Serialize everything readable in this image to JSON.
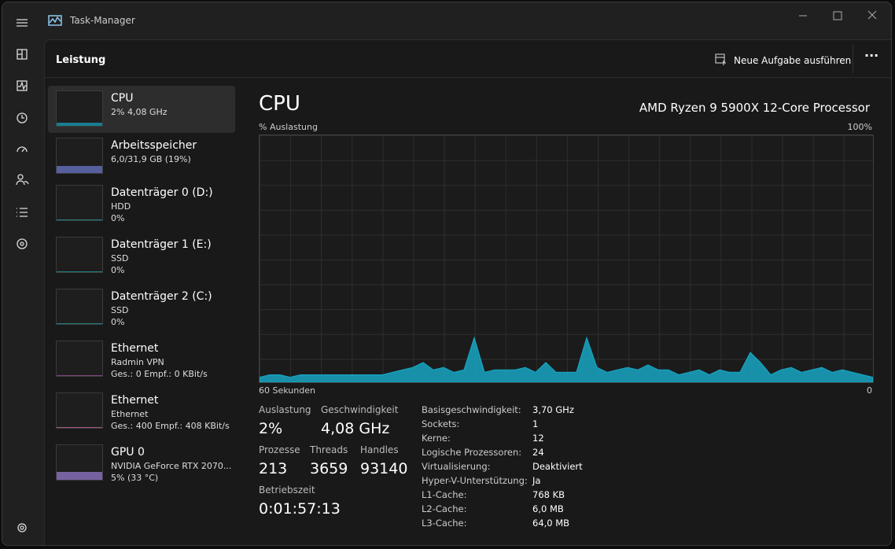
{
  "window": {
    "title": "Task-Manager"
  },
  "header": {
    "title": "Leistung",
    "action": "Neue Aufgabe ausführen"
  },
  "sidebar": {
    "items": [
      {
        "name": "CPU",
        "lines": [
          "2%  4,08 GHz"
        ]
      },
      {
        "name": "Arbeitsspeicher",
        "lines": [
          "6,0/31,9 GB (19%)"
        ]
      },
      {
        "name": "Datenträger 0 (D:)",
        "lines": [
          "HDD",
          "0%"
        ]
      },
      {
        "name": "Datenträger 1 (E:)",
        "lines": [
          "SSD",
          "0%"
        ]
      },
      {
        "name": "Datenträger 2 (C:)",
        "lines": [
          "SSD",
          "0%"
        ]
      },
      {
        "name": "Ethernet",
        "lines": [
          "Radmin VPN",
          "Ges.: 0 Empf.: 0 KBit/s"
        ]
      },
      {
        "name": "Ethernet",
        "lines": [
          "Ethernet",
          "Ges.: 400 Empf.: 408 KBit/s"
        ]
      },
      {
        "name": "GPU 0",
        "lines": [
          "NVIDIA GeForce RTX 2070...",
          "5% (33 °C)"
        ]
      }
    ]
  },
  "cpu": {
    "title": "CPU",
    "processor": "AMD Ryzen 9 5900X 12-Core Processor",
    "y_label": "% Auslastung",
    "y_max_label": "100%",
    "x_left_label": "60 Sekunden",
    "x_right_label": "0",
    "graph": {
      "ylim": [
        0,
        100
      ],
      "color": "#17a5c2",
      "values": [
        2,
        3,
        3,
        2,
        3,
        3,
        3,
        3,
        3,
        3,
        3,
        3,
        3,
        4,
        5,
        6,
        8,
        5,
        6,
        4,
        5,
        18,
        4,
        5,
        5,
        5,
        6,
        4,
        8,
        4,
        4,
        4,
        18,
        6,
        4,
        5,
        6,
        5,
        7,
        5,
        5,
        3,
        4,
        5,
        3,
        5,
        4,
        4,
        12,
        8,
        3,
        5,
        6,
        4,
        5,
        6,
        4,
        5,
        4,
        3,
        2
      ]
    },
    "stats": [
      {
        "label": "Auslastung",
        "value": "2%"
      },
      {
        "label": "Geschwindigkeit",
        "value": "4,08 GHz"
      },
      {
        "label": "Prozesse",
        "value": "213"
      },
      {
        "label": "Threads",
        "value": "3659"
      },
      {
        "label": "Handles",
        "value": "93140"
      },
      {
        "label": "Betriebszeit",
        "value": "0:01:57:13"
      }
    ],
    "details": [
      [
        "Basisgeschwindigkeit:",
        "3,70 GHz"
      ],
      [
        "Sockets:",
        "1"
      ],
      [
        "Kerne:",
        "12"
      ],
      [
        "Logische Prozessoren:",
        "24"
      ],
      [
        "Virtualisierung:",
        "Deaktiviert"
      ],
      [
        "Hyper-V-Unterstützung:",
        "Ja"
      ],
      [
        "L1-Cache:",
        "768 KB"
      ],
      [
        "L2-Cache:",
        "6,0 MB"
      ],
      [
        "L3-Cache:",
        "64,0 MB"
      ]
    ]
  }
}
